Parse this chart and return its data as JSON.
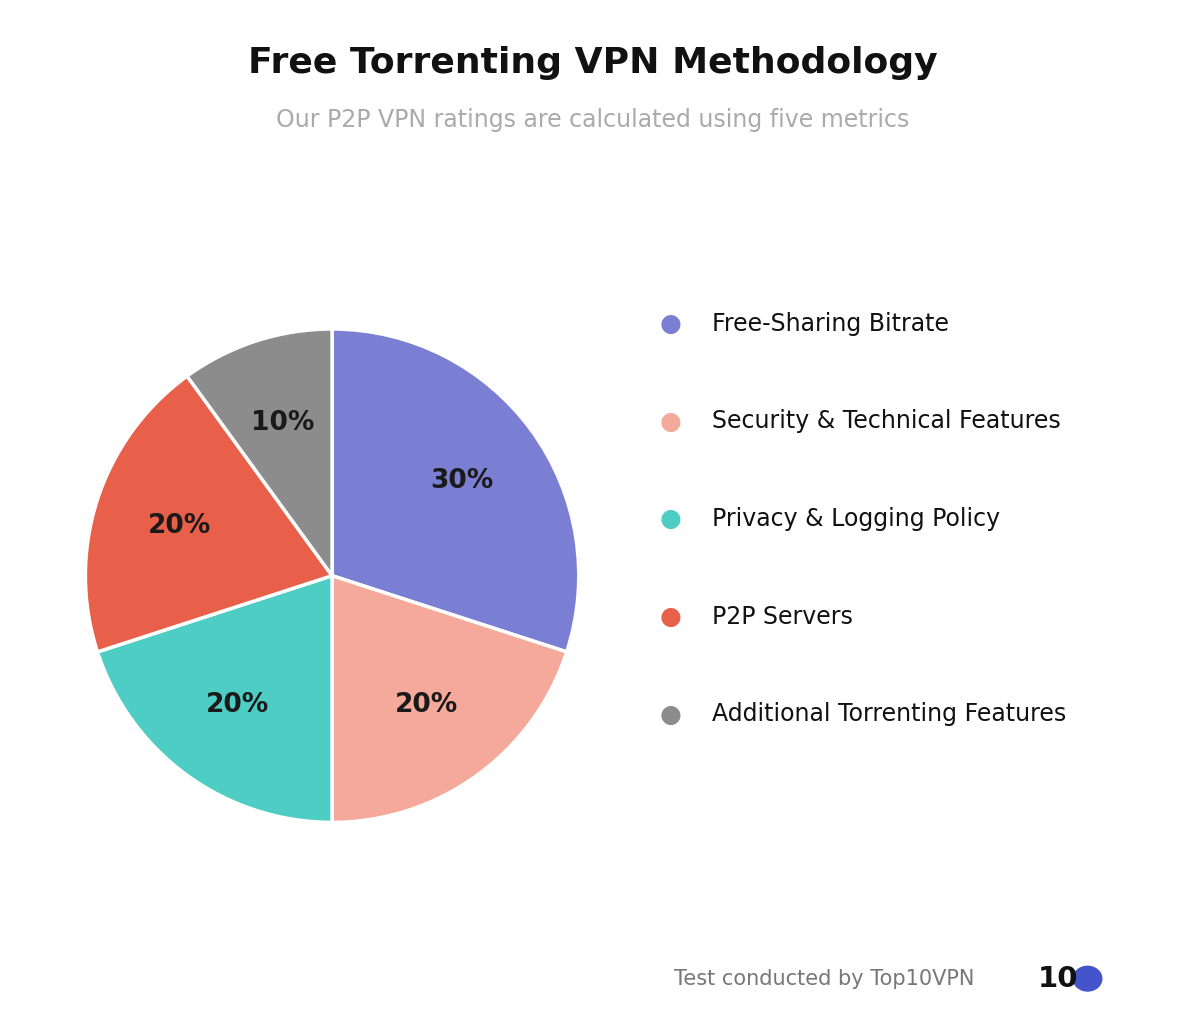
{
  "title": "Free Torrenting VPN Methodology",
  "subtitle": "Our P2P VPN ratings are calculated using five metrics",
  "slices": [
    30,
    20,
    20,
    20,
    10
  ],
  "labels": [
    "30%",
    "20%",
    "20%",
    "20%",
    "10%"
  ],
  "colors": [
    "#7b7fd4",
    "#f5a99a",
    "#4ecdc4",
    "#e8604a",
    "#8c8c8c"
  ],
  "legend_labels": [
    "Free-Sharing Bitrate",
    "Security & Technical Features",
    "Privacy & Logging Policy",
    "P2P Servers",
    "Additional Torrenting Features"
  ],
  "background_color": "#ffffff",
  "title_fontsize": 26,
  "subtitle_fontsize": 17,
  "label_fontsize": 19,
  "legend_fontsize": 17,
  "footer_text": "Test conducted by Top10VPN",
  "footer_fontsize": 15,
  "startangle": 90,
  "wedge_edge_color": "#ffffff",
  "wedge_linewidth": 2.5
}
